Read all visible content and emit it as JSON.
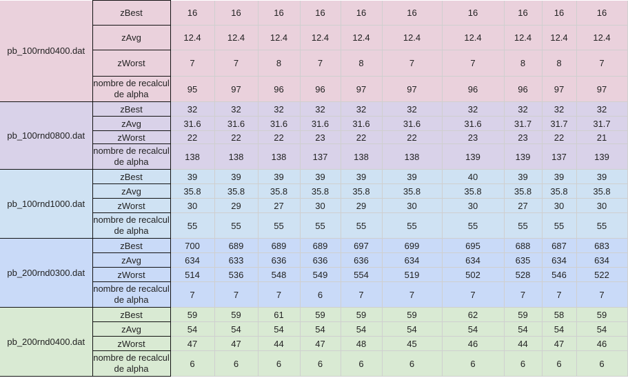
{
  "colors": {
    "group_backgrounds": [
      "#ead1dc",
      "#d9d2e9",
      "#cfe2f3",
      "#c9daf8",
      "#d9ead3"
    ]
  },
  "metric_labels": [
    "zBest",
    "zAvg",
    "zWorst",
    "nombre de recalcul de alpha"
  ],
  "groups": [
    {
      "file": "pb_100rnd0400.dat",
      "rows": [
        [
          "16",
          "16",
          "16",
          "16",
          "16",
          "16",
          "16",
          "16",
          "16",
          "16"
        ],
        [
          "12.4",
          "12.4",
          "12.4",
          "12.4",
          "12.4",
          "12.4",
          "12.4",
          "12.4",
          "12.4",
          "12.4"
        ],
        [
          "7",
          "7",
          "8",
          "7",
          "8",
          "7",
          "7",
          "8",
          "8",
          "7"
        ],
        [
          "95",
          "97",
          "96",
          "96",
          "97",
          "97",
          "96",
          "96",
          "97",
          "97"
        ]
      ]
    },
    {
      "file": "pb_100rnd0800.dat",
      "rows": [
        [
          "32",
          "32",
          "32",
          "32",
          "32",
          "32",
          "32",
          "32",
          "32",
          "32"
        ],
        [
          "31.6",
          "31.6",
          "31.6",
          "31.6",
          "31.6",
          "31.6",
          "31.6",
          "31.7",
          "31.7",
          "31.7"
        ],
        [
          "22",
          "22",
          "22",
          "23",
          "22",
          "22",
          "23",
          "23",
          "22",
          "21"
        ],
        [
          "138",
          "138",
          "138",
          "137",
          "138",
          "138",
          "139",
          "139",
          "137",
          "139"
        ]
      ]
    },
    {
      "file": "pb_100rnd1000.dat",
      "rows": [
        [
          "39",
          "39",
          "39",
          "39",
          "39",
          "39",
          "40",
          "39",
          "39",
          "39"
        ],
        [
          "35.8",
          "35.8",
          "35.8",
          "35.8",
          "35.8",
          "35.8",
          "35.8",
          "35.8",
          "35.8",
          "35.8"
        ],
        [
          "30",
          "29",
          "27",
          "30",
          "29",
          "30",
          "30",
          "27",
          "30",
          "30"
        ],
        [
          "55",
          "55",
          "55",
          "55",
          "55",
          "55",
          "55",
          "55",
          "55",
          "55"
        ]
      ]
    },
    {
      "file": "pb_200rnd0300.dat",
      "rows": [
        [
          "700",
          "689",
          "689",
          "689",
          "697",
          "699",
          "695",
          "688",
          "687",
          "683"
        ],
        [
          "634",
          "633",
          "636",
          "636",
          "636",
          "634",
          "634",
          "635",
          "634",
          "634"
        ],
        [
          "514",
          "536",
          "548",
          "549",
          "554",
          "519",
          "502",
          "528",
          "546",
          "522"
        ],
        [
          "7",
          "7",
          "7",
          "6",
          "7",
          "7",
          "7",
          "7",
          "7",
          "7"
        ]
      ]
    },
    {
      "file": "pb_200rnd0400.dat",
      "rows": [
        [
          "59",
          "59",
          "61",
          "59",
          "59",
          "59",
          "62",
          "59",
          "58",
          "59"
        ],
        [
          "54",
          "54",
          "54",
          "54",
          "54",
          "54",
          "54",
          "54",
          "54",
          "54"
        ],
        [
          "47",
          "47",
          "44",
          "47",
          "48",
          "45",
          "46",
          "44",
          "47",
          "46"
        ],
        [
          "6",
          "6",
          "6",
          "6",
          "6",
          "6",
          "6",
          "6",
          "6",
          "6"
        ]
      ]
    }
  ]
}
